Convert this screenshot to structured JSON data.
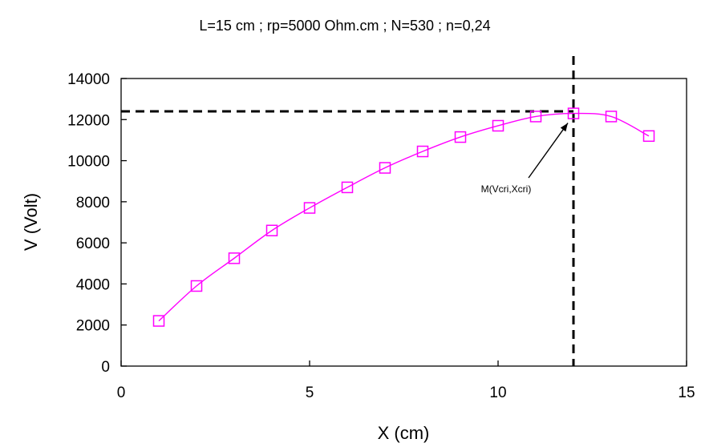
{
  "chart_data": {
    "type": "line",
    "title": "L=15 cm ; rp=5000 Ohm.cm ; N=530 ; n=0,24",
    "xlabel": "X (cm)",
    "ylabel": "V (Volt)",
    "xlim": [
      0,
      15
    ],
    "ylim": [
      0,
      14000
    ],
    "x_ticks": [
      0,
      5,
      10,
      15
    ],
    "y_ticks": [
      0,
      2000,
      4000,
      6000,
      8000,
      10000,
      12000,
      14000
    ],
    "grid": false,
    "series": [
      {
        "color": "#ff00ff",
        "marker": "open-square",
        "x": [
          1,
          2,
          3,
          4,
          5,
          6,
          7,
          8,
          9,
          10,
          11,
          12,
          13,
          14
        ],
        "y": [
          2200,
          3900,
          5250,
          6600,
          7700,
          8700,
          9650,
          10450,
          11150,
          11700,
          12150,
          12300,
          12150,
          11200
        ]
      }
    ],
    "reference_lines": {
      "x": 12,
      "y": 12400,
      "color": "#000000",
      "style": "dashed"
    },
    "annotation": {
      "text": "M(Vcri,Xcri)",
      "target": {
        "x": 12,
        "y": 12300
      }
    }
  }
}
